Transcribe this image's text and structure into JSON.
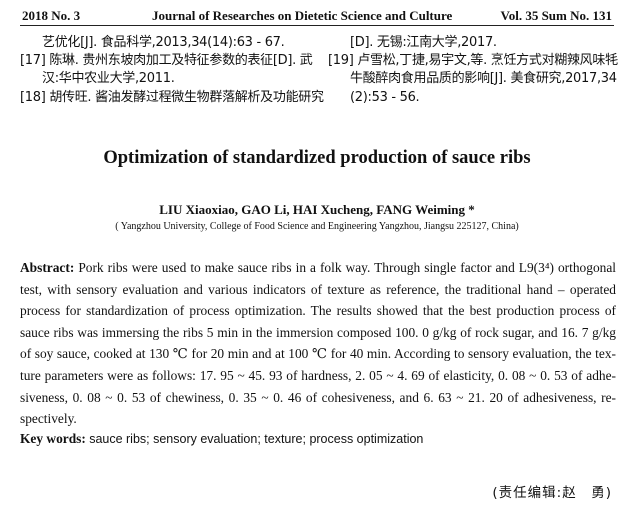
{
  "header": {
    "issue": "2018 No. 3",
    "journal": "Journal of Researches on Dietetic Science and Culture",
    "volume": "Vol. 35 Sum No. 131"
  },
  "references": {
    "left": [
      "艺优化[J]. 食品科学,2013,34(14):63 - 67.",
      "[17] 陈琳. 贵州东坡肉加工及特征参数的表征[D]. 武",
      "汉:华中农业大学,2011.",
      "[18] 胡传旺. 酱油发酵过程微生物群落解析及功能研究"
    ],
    "right": [
      "[D]. 无锡:江南大学,2017.",
      "[19] 卢雪松,丁捷,易宇文,等. 烹饪方式对糊辣风味牦",
      "牛酸醉肉食用品质的影响[J]. 美食研究,2017,34",
      "(2):53 - 56."
    ]
  },
  "title": "Optimization of standardized production of sauce ribs",
  "authors": "LIU Xiaoxiao, GAO Li, HAI Xucheng, FANG Weiming *",
  "affiliation": "( Yangzhou University, College of Food Science and Engineering Yangzhou, Jiangsu 225127, China)",
  "abstract": {
    "label": "Abstract",
    "sep": ": ",
    "lines": [
      "Pork ribs were used to make sauce ribs in a folk way.  Through single factor and L9(3⁴) orthogonal",
      "test, with sensory evaluation and various indicators of texture as reference, the traditional hand – operated",
      "process for standardization of process optimization.  The results showed that the best production process of",
      "sauce ribs was immersing the ribs 5 min in the immersion composed 100. 0 g/kg of rock sugar, and 16. 7 g/kg",
      "of soy sauce, cooked at 130 ℃ for 20 min and at 100 ℃ for 40 min.  According to sensory evaluation, the tex-",
      "ture parameters were as follows: 17. 95 ~ 45. 93 of hardness, 2. 05 ~ 4. 69 of elasticity, 0. 08 ~ 0. 53 of adhe-",
      "siveness, 0. 08 ~ 0. 53 of chewiness, 0. 35 ~ 0. 46 of cohesiveness, and 6. 63 ~ 21. 20 of adhesiveness, re-",
      "spectively."
    ]
  },
  "keywords": {
    "label": "Key words",
    "sep": ": ",
    "value": "sauce ribs; sensory evaluation; texture; process optimization"
  },
  "editor": "(责任编辑:赵　勇)"
}
